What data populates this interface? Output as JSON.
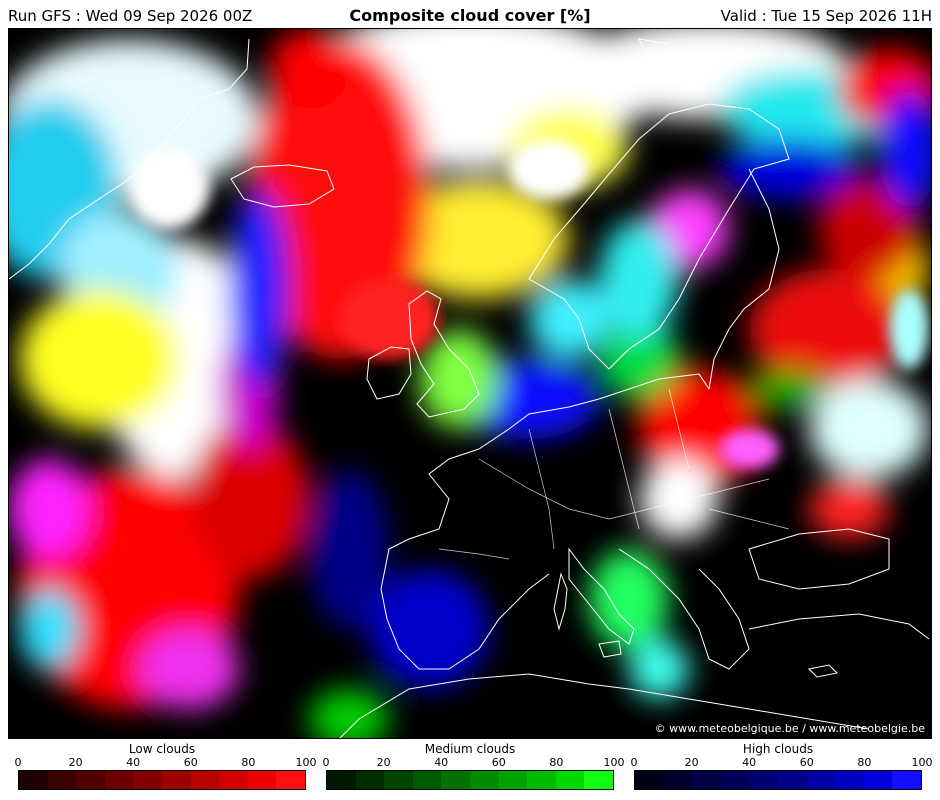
{
  "header": {
    "run": "Run GFS : Wed 09 Sep 2026 00Z",
    "title": "Composite cloud cover [%]",
    "valid": "Valid : Tue 15 Sep 2026 11H"
  },
  "map": {
    "copyright": "© www.meteobelgique.be / www.meteobelgie.be"
  },
  "legends": [
    {
      "title": "Low clouds",
      "ticks": [
        "0",
        "20",
        "40",
        "60",
        "80",
        "100"
      ],
      "colors": [
        "#200000",
        "#380000",
        "#500000",
        "#6a0000",
        "#840000",
        "#9e0000",
        "#b80000",
        "#d20000",
        "#ec0000",
        "#ff1010"
      ]
    },
    {
      "title": "Medium clouds",
      "ticks": [
        "0",
        "20",
        "40",
        "60",
        "80",
        "100"
      ],
      "colors": [
        "#001a00",
        "#002e00",
        "#004400",
        "#005a00",
        "#007200",
        "#008a00",
        "#00a200",
        "#00ba00",
        "#00d600",
        "#10ff10"
      ]
    },
    {
      "title": "High clouds",
      "ticks": [
        "0",
        "20",
        "40",
        "60",
        "80",
        "100"
      ],
      "colors": [
        "#000018",
        "#00002e",
        "#000044",
        "#00005a",
        "#000072",
        "#00008a",
        "#0000a6",
        "#0000c2",
        "#0000de",
        "#1010ff"
      ]
    }
  ]
}
